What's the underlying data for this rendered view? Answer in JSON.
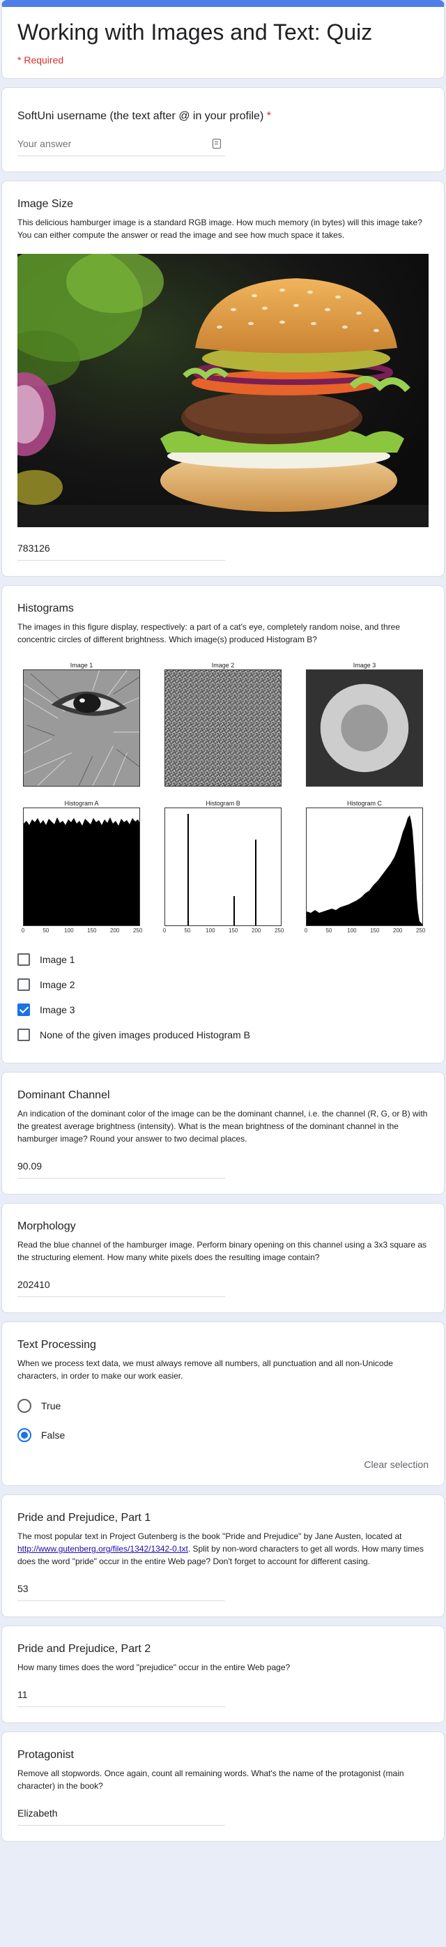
{
  "header": {
    "title": "Working with Images and Text: Quiz",
    "required_note": "* Required"
  },
  "username": {
    "title": "SoftUni username (the text after @ in your profile)",
    "required_star": "*",
    "placeholder": "Your answer",
    "icon": "keyboard-icon"
  },
  "image_size": {
    "title": "Image Size",
    "description": "This delicious hamburger image is a standard RGB image. How much memory (in bytes) will this image take? You can either compute the answer or read the image and see how much space it takes.",
    "answer": "783126"
  },
  "histograms": {
    "title": "Histograms",
    "description": "The images in this figure display, respectively: a part of a cat's eye, completely random noise, and three concentric circles of different brightness. Which image(s) produced Histogram B?",
    "image_labels": [
      "Image 1",
      "Image 2",
      "Image 3"
    ],
    "hist_labels": [
      "Histogram A",
      "Histogram B",
      "Histogram C"
    ],
    "x_ticks": [
      "0",
      "50",
      "100",
      "150",
      "200",
      "250"
    ],
    "options": [
      {
        "label": "Image 1",
        "checked": false
      },
      {
        "label": "Image 2",
        "checked": false
      },
      {
        "label": "Image 3",
        "checked": true
      },
      {
        "label": "None of the given images produced Histogram B",
        "checked": false
      }
    ]
  },
  "dominant_channel": {
    "title": "Dominant Channel",
    "description": "An indication of the dominant color of the image can be the dominant channel, i.e. the channel (R, G, or B) with the greatest average brightness (intensity). What is the mean brightness of the dominant channel in the hamburger image? Round your answer to two decimal places.",
    "answer": "90.09"
  },
  "morphology": {
    "title": "Morphology",
    "description": "Read the blue channel of the hamburger image. Perform binary opening on this channel using a 3x3 square as the structuring element. How many white pixels does the resulting image contain?",
    "answer": "202410"
  },
  "text_processing": {
    "title": "Text Processing",
    "description": "When we process text data, we must always remove all numbers, all punctuation and all non-Unicode characters, in order to make our work easier.",
    "options": [
      {
        "label": "True",
        "selected": false
      },
      {
        "label": "False",
        "selected": true
      }
    ],
    "clear_label": "Clear selection"
  },
  "pride1": {
    "title": "Pride and Prejudice, Part 1",
    "description_pre": "The most popular text in Project Gutenberg is the book \"Pride and Prejudice\" by Jane Austen, located at ",
    "link_text": "http://www.gutenberg.org/files/1342/1342-0.txt",
    "description_post": ". Split by non-word characters to get all words. How many times does the word \"pride\" occur in the entire Web page? Don't forget to account for different casing.",
    "answer": "53"
  },
  "pride2": {
    "title": "Pride and Prejudice, Part 2",
    "description": "How many times does the word \"prejudice\" occur in the entire Web page?",
    "answer": "11"
  },
  "protagonist": {
    "title": "Protagonist",
    "description": "Remove all stopwords. Once again, count all remaining words. What's the name of the protagonist (main character) in the book?",
    "answer": "Elizabeth"
  },
  "colors": {
    "accent": "#4f7ee8",
    "checked": "#1a73e8",
    "required": "#d93025",
    "background": "#e8edf7"
  }
}
